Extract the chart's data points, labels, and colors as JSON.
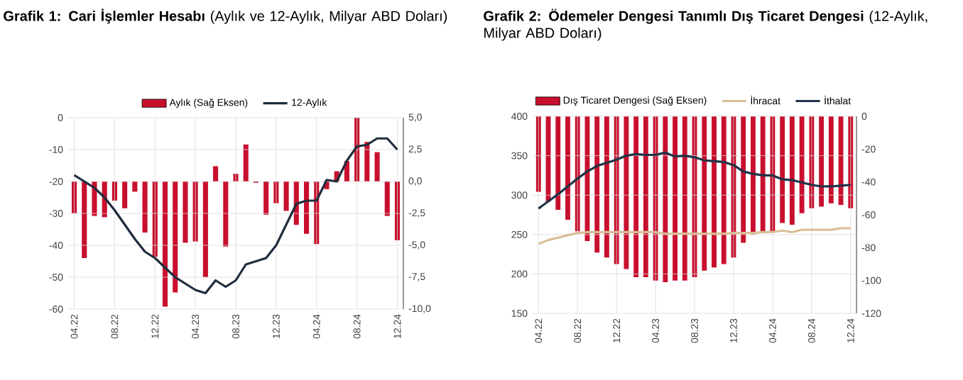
{
  "chart_data": [
    {
      "type": "bar",
      "title": "**Grafik 1: Cari İşlemler Hesabı** (Aylık ve 12-Aylık, Milyar ABD Doları)",
      "categories": [
        "04.22",
        null,
        null,
        null,
        "08.22",
        null,
        null,
        null,
        "12.22",
        null,
        null,
        null,
        "04.23",
        null,
        null,
        null,
        "08.23",
        null,
        null,
        null,
        "12.23",
        null,
        null,
        null,
        "04.24",
        null,
        null,
        null,
        "08.24",
        null,
        null,
        null,
        "12.24"
      ],
      "series": [
        {
          "name": "Aylık (Sağ Eksen)",
          "axis": "y2",
          "color": "#c8102e",
          "values": [
            -2.5,
            -6.0,
            -2.7,
            -2.8,
            -1.5,
            -2.1,
            -0.8,
            -4.0,
            -5.9,
            -9.8,
            -8.7,
            -4.8,
            -4.7,
            -7.5,
            1.2,
            -5.1,
            0.6,
            2.9,
            -0.1,
            -2.6,
            -1.7,
            -2.3,
            -3.4,
            -4.1,
            -4.9,
            -0.6,
            0.8,
            1.6,
            5.0,
            3.1,
            2.3,
            -2.7,
            -4.6
          ]
        },
        {
          "name": "12-Aylık",
          "type": "line",
          "axis": "y",
          "color": "#1f2d3d",
          "values": [
            -18,
            -20,
            -22,
            -25,
            -29,
            -33.5,
            -38,
            -42,
            -44,
            -47,
            -50,
            -52,
            -54,
            -55,
            -51,
            -53,
            -51,
            -46,
            -45,
            -44,
            -40,
            -33.5,
            -27,
            -26,
            -26,
            -19.5,
            -20,
            -13.5,
            -9,
            -8.5,
            -6.5,
            -6.5,
            -10
          ]
        }
      ],
      "ylim": [
        -60,
        0
      ],
      "yticks": [
        -60,
        -50,
        -40,
        -30,
        -20,
        -10,
        0
      ],
      "y2lim": [
        -10,
        5
      ],
      "y2ticks": [
        {
          "value": -10,
          "label": "-10,0"
        },
        {
          "value": -7.5,
          "label": "-7,5"
        },
        {
          "value": -5,
          "label": "-5,0"
        },
        {
          "value": -2.5,
          "label": "-2,5"
        },
        {
          "value": 0,
          "label": "0,0"
        },
        {
          "value": 2.5,
          "label": "2,5"
        },
        {
          "value": 5,
          "label": "5,0"
        }
      ],
      "grid": true,
      "legend": "top"
    },
    {
      "type": "bar",
      "title": "**Grafik 2: Ödemeler Dengesi Tanımlı Dış Ticaret Dengesi** (12-Aylık, Milyar ABD Doları)",
      "categories": [
        "04.22",
        null,
        null,
        null,
        "08.22",
        null,
        null,
        null,
        "12.22",
        null,
        null,
        null,
        "04.23",
        null,
        null,
        null,
        "08.23",
        null,
        null,
        null,
        "12.23",
        null,
        null,
        null,
        "04.24",
        null,
        null,
        null,
        "08.24",
        null,
        null,
        null,
        "12.24"
      ],
      "series": [
        {
          "name": "Dış Ticaret Dengesi (Sağ Eksen)",
          "axis": "y2",
          "color": "#c8102e",
          "values": [
            -46,
            -52,
            -57,
            -63,
            -70,
            -76,
            -83,
            -86,
            -90,
            -93,
            -98,
            -98,
            -100,
            -101,
            -100,
            -100,
            -98,
            -94,
            -92,
            -90,
            -86,
            -77,
            -72,
            -70,
            -70,
            -65,
            -66,
            -59,
            -56,
            -55,
            -53,
            -54,
            -56
          ]
        },
        {
          "name": "İhracat",
          "type": "line",
          "axis": "y",
          "color": "#d9bf98",
          "values": [
            238,
            243,
            246,
            249,
            252,
            253,
            253,
            253,
            253,
            253,
            253,
            253,
            253,
            251,
            251,
            251,
            251,
            251,
            251,
            251,
            252,
            252,
            252,
            253,
            253,
            255,
            253,
            256,
            256,
            256,
            256,
            258,
            258
          ]
        },
        {
          "name": "İthalat",
          "type": "line",
          "axis": "y",
          "color": "#1f3347",
          "values": [
            283,
            292,
            301,
            311,
            321,
            330,
            337,
            341,
            345,
            350,
            352,
            351,
            351,
            354,
            349,
            350,
            348,
            344,
            343,
            342,
            338,
            330,
            327,
            325,
            325,
            320,
            319,
            316,
            313,
            311,
            311,
            312,
            313
          ]
        }
      ],
      "ylim": [
        150,
        400
      ],
      "yticks": [
        150,
        200,
        250,
        300,
        350,
        400
      ],
      "y2lim": [
        -120,
        0
      ],
      "y2ticks": [
        -120,
        -100,
        -80,
        -60,
        -40,
        -20,
        0
      ],
      "grid": true,
      "legend": "top"
    }
  ]
}
